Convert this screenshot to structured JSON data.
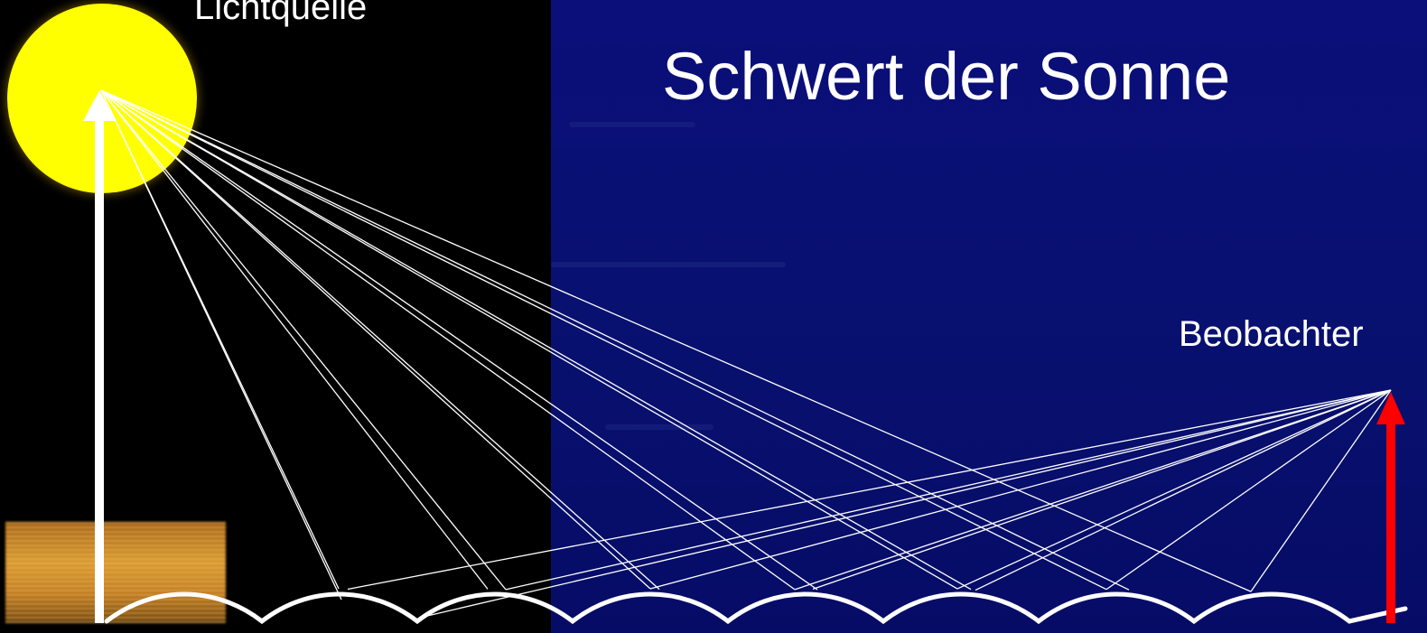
{
  "title": "Schwert der Sonne",
  "labels": {
    "light_source": "Lichtquelle",
    "observer": "Beobachter"
  },
  "colors": {
    "background_left": "#000000",
    "background_right": "#08106f",
    "sun": "#ffff00",
    "rays": "#ffffff",
    "light_source_arrow": "#ffffff",
    "observer_arrow": "#ff0000"
  },
  "icons": {
    "sun": "sun-disc",
    "water_surface": "wave-line",
    "light_source_arrow": "arrow-up",
    "observer_arrow": "arrow-up"
  }
}
